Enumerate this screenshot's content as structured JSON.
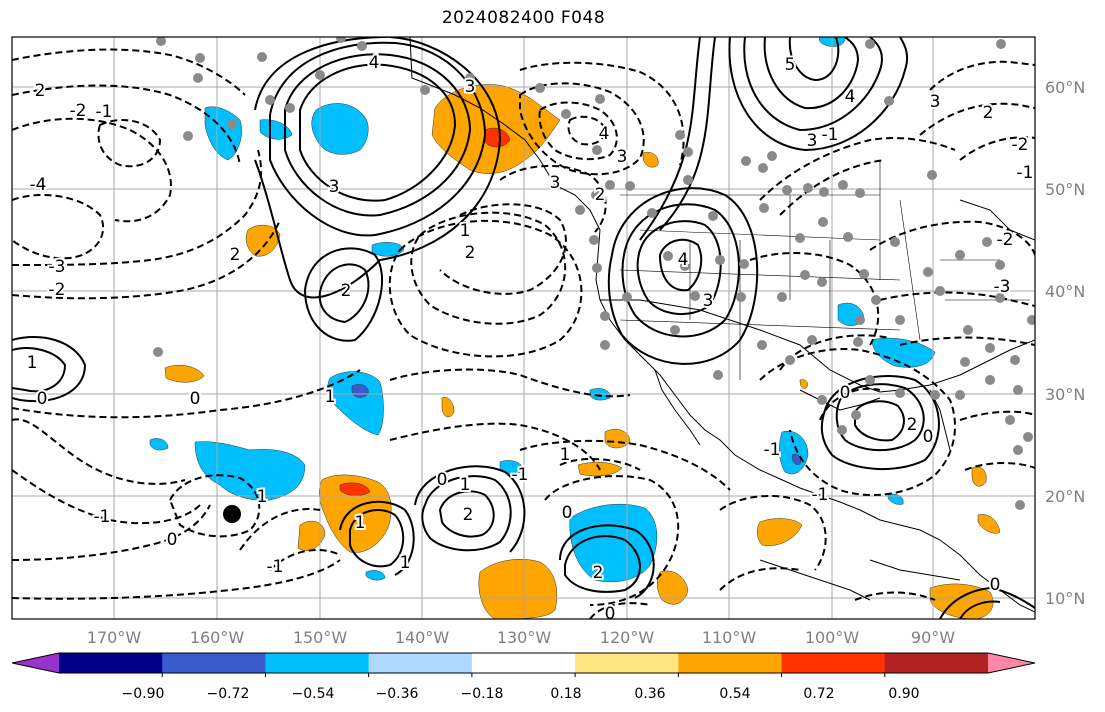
{
  "title": "2024082400 F048",
  "lon_labels": [
    "170°W",
    "160°W",
    "150°W",
    "140°W",
    "130°W",
    "120°W",
    "110°W",
    "100°W",
    "90°W"
  ],
  "lat_labels": [
    "60°N",
    "50°N",
    "40°N",
    "30°N",
    "20°N",
    "10°N"
  ],
  "colorbar": {
    "colors": [
      "#9932cc",
      "#00008b",
      "#3a5bd0",
      "#00bfff",
      "#add8ff",
      "#ffffff",
      "#ffe680",
      "#ffa500",
      "#ff3300",
      "#b22222",
      "#ff88aa"
    ],
    "tick_labels": [
      "−0.90",
      "−0.72",
      "−0.54",
      "−0.36",
      "−0.18",
      "0.18",
      "0.36",
      "0.54",
      "0.72",
      "0.90"
    ]
  },
  "contour_labels": [
    "4",
    "3",
    "5",
    "4",
    "3",
    "2",
    "3",
    "2",
    "4",
    "3",
    "2",
    "1",
    "0",
    "1",
    "2",
    "3",
    "2",
    "1",
    "0",
    "1",
    "2",
    "3",
    "4",
    "3",
    "2",
    "1",
    "0",
    "0",
    "-1",
    "-2",
    "-3",
    "-4",
    "-1",
    "-2",
    "-3",
    "-2",
    "-1",
    "0",
    "1",
    "2",
    "-1",
    "0",
    "1",
    "2",
    "-1",
    "-2",
    "-1",
    "0",
    "-1",
    "0",
    "1",
    "0",
    "-1"
  ],
  "color_legend": {
    "positive": "#ffa500",
    "negative": "#00bfff",
    "strong_positive": "#ff3300",
    "strong_negative": "#3a5bd0"
  }
}
